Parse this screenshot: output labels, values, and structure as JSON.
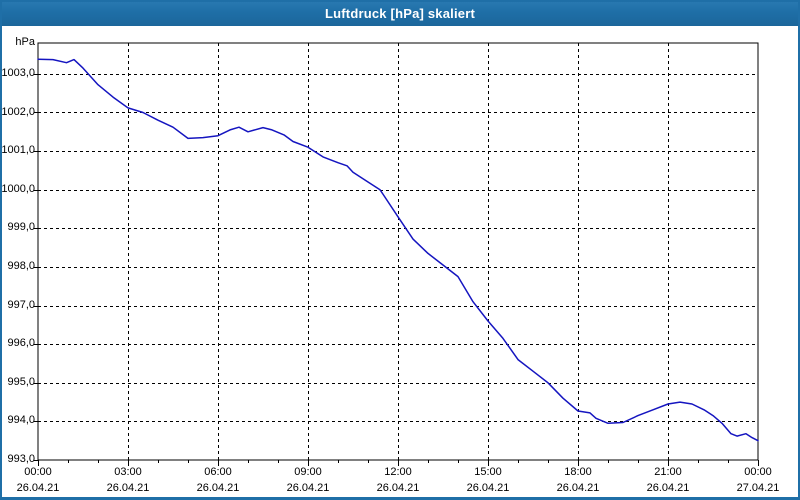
{
  "window": {
    "title": "Luftdruck [hPa] skaliert"
  },
  "colors": {
    "titlebar_bg": "#1f6fa7",
    "window_border": "#1f6fa7",
    "title_text": "#ffffff",
    "line": "#1515c0",
    "grid": "#000000",
    "frame": "#000000",
    "plot_bg": "#ffffff",
    "label_text": "#000000"
  },
  "chart_data": {
    "type": "line",
    "title": "Luftdruck [hPa] skaliert",
    "xlabel": "",
    "ylabel": "hPa",
    "ylim": [
      993.0,
      1003.8
    ],
    "xlim_hours": [
      0,
      24
    ],
    "grid": "dashed",
    "legend": "none",
    "x_minor_tick_every_hours": 1,
    "y_ticks": [
      {
        "value": 1003.0,
        "label": "1003,0"
      },
      {
        "value": 1002.0,
        "label": "1002,0"
      },
      {
        "value": 1001.0,
        "label": "1001,0"
      },
      {
        "value": 1000.0,
        "label": "1000,0"
      },
      {
        "value": 999.0,
        "label": "999,0"
      },
      {
        "value": 998.0,
        "label": "998,0"
      },
      {
        "value": 997.0,
        "label": "997,0"
      },
      {
        "value": 996.0,
        "label": "996,0"
      },
      {
        "value": 995.0,
        "label": "995,0"
      },
      {
        "value": 994.0,
        "label": "994,0"
      },
      {
        "value": 993.0,
        "label": "993,0"
      }
    ],
    "x_ticks": [
      {
        "hour": 0,
        "time": "00:00",
        "date": "26.04.21"
      },
      {
        "hour": 3,
        "time": "03:00",
        "date": "26.04.21"
      },
      {
        "hour": 6,
        "time": "06:00",
        "date": "26.04.21"
      },
      {
        "hour": 9,
        "time": "09:00",
        "date": "26.04.21"
      },
      {
        "hour": 12,
        "time": "12:00",
        "date": "26.04.21"
      },
      {
        "hour": 15,
        "time": "15:00",
        "date": "26.04.21"
      },
      {
        "hour": 18,
        "time": "18:00",
        "date": "26.04.21"
      },
      {
        "hour": 21,
        "time": "21:00",
        "date": "26.04.21"
      },
      {
        "hour": 24,
        "time": "00:00",
        "date": "27.04.21"
      }
    ],
    "series": [
      {
        "name": "Luftdruck [hPa]",
        "color": "#1515c0",
        "points": [
          [
            0.0,
            1003.38
          ],
          [
            0.5,
            1003.37
          ],
          [
            0.95,
            1003.29
          ],
          [
            1.2,
            1003.37
          ],
          [
            1.5,
            1003.15
          ],
          [
            2.0,
            1002.72
          ],
          [
            2.5,
            1002.4
          ],
          [
            3.0,
            1002.12
          ],
          [
            3.5,
            1002.0
          ],
          [
            4.0,
            1001.8
          ],
          [
            4.5,
            1001.62
          ],
          [
            5.0,
            1001.33
          ],
          [
            5.5,
            1001.35
          ],
          [
            6.0,
            1001.4
          ],
          [
            6.4,
            1001.55
          ],
          [
            6.7,
            1001.62
          ],
          [
            7.0,
            1001.5
          ],
          [
            7.5,
            1001.61
          ],
          [
            7.8,
            1001.55
          ],
          [
            8.2,
            1001.42
          ],
          [
            8.5,
            1001.25
          ],
          [
            9.0,
            1001.1
          ],
          [
            9.5,
            1000.85
          ],
          [
            10.0,
            1000.7
          ],
          [
            10.3,
            1000.62
          ],
          [
            10.5,
            1000.45
          ],
          [
            11.0,
            1000.2
          ],
          [
            11.4,
            1000.0
          ],
          [
            12.0,
            999.3
          ],
          [
            12.5,
            998.72
          ],
          [
            13.0,
            998.35
          ],
          [
            13.5,
            998.05
          ],
          [
            14.0,
            997.75
          ],
          [
            14.5,
            997.1
          ],
          [
            15.0,
            996.6
          ],
          [
            15.5,
            996.15
          ],
          [
            16.0,
            995.6
          ],
          [
            16.5,
            995.3
          ],
          [
            17.0,
            995.0
          ],
          [
            17.5,
            994.6
          ],
          [
            18.0,
            994.27
          ],
          [
            18.4,
            994.22
          ],
          [
            18.6,
            994.08
          ],
          [
            19.0,
            993.95
          ],
          [
            19.5,
            993.97
          ],
          [
            20.0,
            994.15
          ],
          [
            20.5,
            994.3
          ],
          [
            21.0,
            994.45
          ],
          [
            21.4,
            994.5
          ],
          [
            21.8,
            994.45
          ],
          [
            22.2,
            994.3
          ],
          [
            22.5,
            994.15
          ],
          [
            22.8,
            993.95
          ],
          [
            23.1,
            993.68
          ],
          [
            23.3,
            993.62
          ],
          [
            23.6,
            993.68
          ],
          [
            23.8,
            993.58
          ],
          [
            24.0,
            993.5
          ]
        ]
      }
    ]
  }
}
